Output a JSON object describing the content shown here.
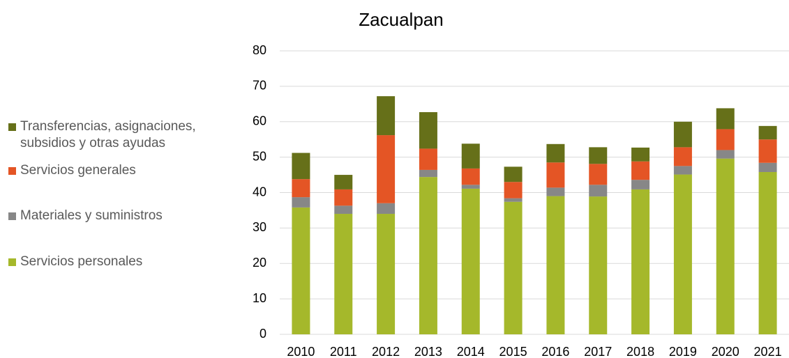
{
  "chart_data": {
    "type": "stacked_bar",
    "title": "Zacualpan",
    "categories": [
      "2010",
      "2011",
      "2012",
      "2013",
      "2014",
      "2015",
      "2016",
      "2017",
      "2018",
      "2019",
      "2020",
      "2021"
    ],
    "series": [
      {
        "name": "Servicios personales",
        "color": "#a5b82b",
        "values": [
          35.8,
          34,
          34,
          44.4,
          41.1,
          37.4,
          39,
          38.9,
          40.9,
          45.1,
          49.6,
          45.8
        ]
      },
      {
        "name": "Materiales y suministros",
        "color": "#878787",
        "values": [
          2.9,
          2.3,
          3,
          2,
          1.1,
          1,
          2.4,
          3.3,
          2.7,
          2.4,
          2.4,
          2.6
        ]
      },
      {
        "name": "Servicios generales",
        "color": "#e45525",
        "values": [
          5.1,
          4.6,
          19.2,
          6,
          4.6,
          4.6,
          7.1,
          5.9,
          5.2,
          5.3,
          5.9,
          6.6
        ]
      },
      {
        "name": "Transferencias, asignaciones, subsidios y otras ayudas",
        "color": "#667019",
        "values": [
          7.4,
          4.1,
          11,
          10.3,
          7,
          4.3,
          5.2,
          4.7,
          3.9,
          7.2,
          5.9,
          3.8
        ]
      }
    ],
    "ylim": [
      0,
      80
    ],
    "yticks": [
      0,
      10,
      20,
      30,
      40,
      50,
      60,
      70,
      80
    ],
    "grid": true
  }
}
